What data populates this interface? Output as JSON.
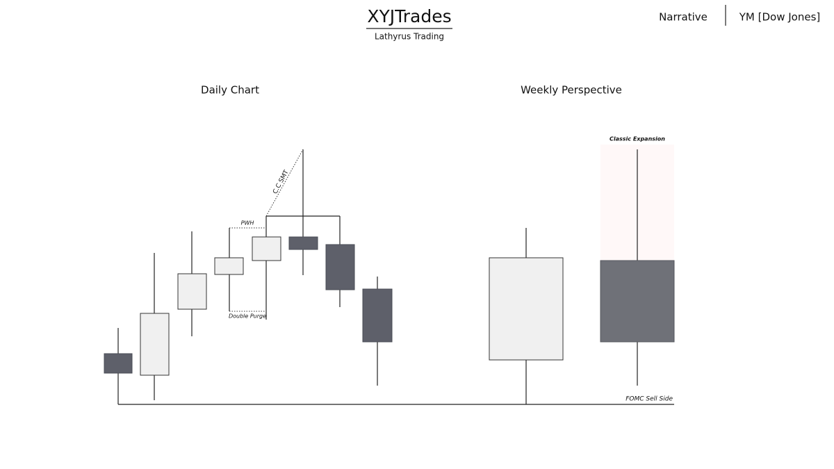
{
  "header": {
    "title": "XYJTrades",
    "subtitle": "Lathyrus Trading",
    "nav": [
      "Narrative",
      "YM [Dow Jones]"
    ]
  },
  "panels": [
    {
      "title": "Daily Chart",
      "annotations": [
        "C.C SMT",
        "PWH",
        "Double Purge"
      ]
    },
    {
      "title": "Weekly Perspective",
      "annotations": [
        "Classic Expansion",
        "FOMC Sell Side"
      ]
    }
  ]
}
